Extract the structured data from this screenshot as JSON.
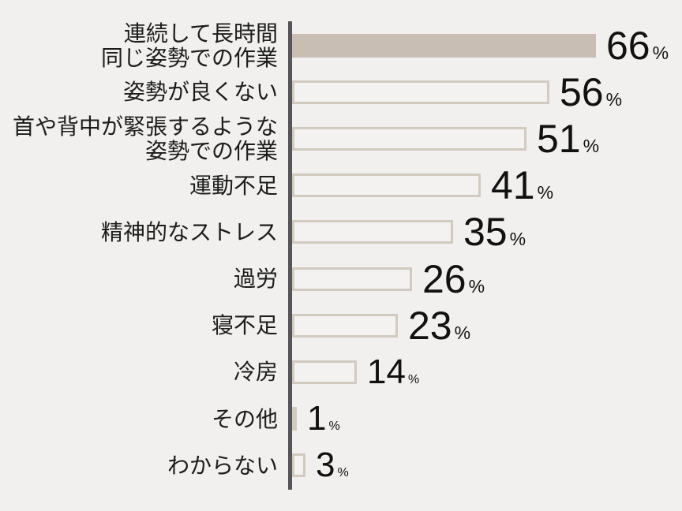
{
  "chart_data": {
    "type": "bar",
    "orientation": "horizontal",
    "title": "",
    "xlabel": "",
    "ylabel": "",
    "unit": "%",
    "categories": [
      "連続して長時間\n同じ姿勢での作業",
      "姿勢が良くない",
      "首や背中が緊張するような\n姿勢での作業",
      "運動不足",
      "精神的なストレス",
      "過労",
      "寝不足",
      "冷房",
      "その他",
      "わからない"
    ],
    "values": [
      66,
      56,
      51,
      41,
      35,
      26,
      23,
      14,
      1,
      3
    ],
    "highlighted_index": 0,
    "xlim": [
      0,
      70
    ],
    "grid": false,
    "legend": false,
    "value_label_position": "end-of-bar"
  },
  "colors": {
    "background": "#f1f0ee",
    "bar_fill": "#c8beb3",
    "bar_outline": "#d3cabf",
    "outlined_bar_fill": "#f3f2f0",
    "axis_line": "#56565a",
    "label_text": "#1c1c1c",
    "value_text": "#111111"
  }
}
